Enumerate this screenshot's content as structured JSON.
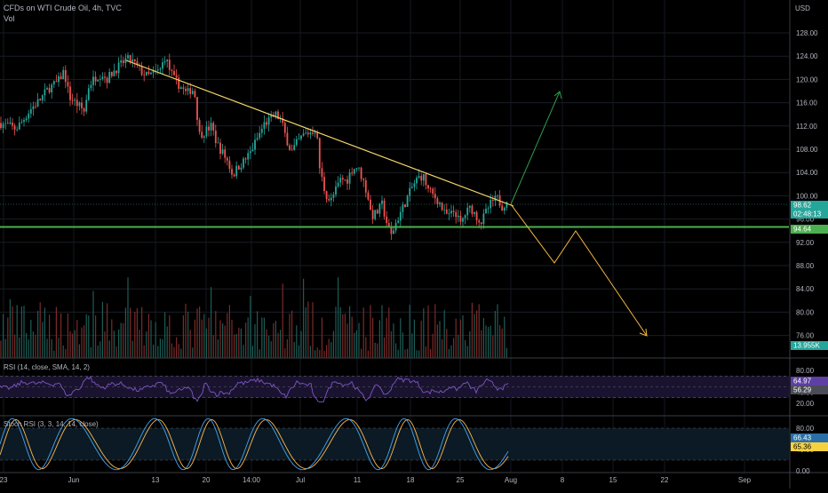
{
  "header": {
    "symbol_line": "CFDs on WTI Crude Oil, 4h, TVC",
    "volume_label": "Vol"
  },
  "axis": {
    "currency": "USD",
    "price_ticks": [
      "128.00",
      "124.00",
      "120.00",
      "116.00",
      "112.00",
      "108.00",
      "104.00",
      "100.00",
      "96.00",
      "92.00",
      "88.00",
      "84.00",
      "80.00",
      "76.00"
    ],
    "time_ticks": [
      "23",
      "Jun",
      "13",
      "20",
      "14:00",
      "Jul",
      "11",
      "18",
      "25",
      "Aug",
      "8",
      "15",
      "22",
      "Sep"
    ]
  },
  "price_badges": {
    "last_price": "98.62",
    "countdown": "02:48:13",
    "support_level": "94.64",
    "volume": "13.955K"
  },
  "rsi": {
    "label": "RSI (14, close, SMA, 14, 2)",
    "ticks": [
      "80.00",
      "60.00",
      "40.00",
      "20.00"
    ],
    "badge_a": "64.97",
    "badge_b": "56.29"
  },
  "stoch": {
    "label": "Stoch RSI (3, 3, 14, 14, close)",
    "ticks": [
      "80.00",
      "40.00",
      "0.00"
    ],
    "badge_a": "66.43",
    "badge_b": "65.36"
  },
  "colors": {
    "background": "#000000",
    "up_candle": "#26a69a",
    "down_candle": "#ef5350",
    "trendline": "#f7d86b",
    "support": "#4caf50",
    "projection_up": "#2e9c4a",
    "projection_down": "#f5b942",
    "rsi_line": "#7e57c2",
    "stoch_k": "#42a5f5",
    "stoch_d": "#ffb74d",
    "badge_price": "#26a69a",
    "badge_support": "#4caf50",
    "badge_stoch_b": "#f5d142"
  },
  "chart_data": {
    "type": "candlestick",
    "title": "CFDs on WTI Crude Oil, 4h, TVC",
    "ylabel": "USD",
    "ylim": [
      74,
      130
    ],
    "price_path": [
      [
        0,
        112.5
      ],
      [
        10,
        112.0
      ],
      [
        18,
        111.5
      ],
      [
        25,
        112.8
      ],
      [
        35,
        115
      ],
      [
        45,
        116.5
      ],
      [
        55,
        118.5
      ],
      [
        65,
        119.5
      ],
      [
        72,
        121.5
      ],
      [
        78,
        117
      ],
      [
        85,
        116
      ],
      [
        95,
        114.5
      ],
      [
        100,
        119
      ],
      [
        108,
        120.5
      ],
      [
        115,
        121
      ],
      [
        120,
        120
      ],
      [
        128,
        121.5
      ],
      [
        136,
        122.5
      ],
      [
        142,
        123.5
      ],
      [
        150,
        123
      ],
      [
        158,
        121.5
      ],
      [
        166,
        120.5
      ],
      [
        172,
        121
      ],
      [
        180,
        121.5
      ],
      [
        186,
        124
      ],
      [
        190,
        122
      ],
      [
        196,
        120
      ],
      [
        202,
        119
      ],
      [
        210,
        117.5
      ],
      [
        216,
        118.5
      ],
      [
        220,
        117
      ],
      [
        224,
        110.5
      ],
      [
        230,
        111
      ],
      [
        238,
        112
      ],
      [
        244,
        109
      ],
      [
        250,
        107.5
      ],
      [
        256,
        106
      ],
      [
        262,
        103.5
      ],
      [
        268,
        105
      ],
      [
        275,
        106
      ],
      [
        282,
        107.5
      ],
      [
        290,
        110
      ],
      [
        298,
        112.5
      ],
      [
        304,
        113
      ],
      [
        310,
        114
      ],
      [
        316,
        113
      ],
      [
        322,
        110
      ],
      [
        328,
        107.5
      ],
      [
        334,
        109
      ],
      [
        342,
        110.5
      ],
      [
        350,
        111
      ],
      [
        356,
        111.5
      ],
      [
        360,
        104.5
      ],
      [
        366,
        100.5
      ],
      [
        372,
        99
      ],
      [
        378,
        101
      ],
      [
        384,
        103
      ],
      [
        390,
        102.5
      ],
      [
        396,
        104.5
      ],
      [
        402,
        105
      ],
      [
        408,
        103
      ],
      [
        414,
        100
      ],
      [
        418,
        96.5
      ],
      [
        424,
        97
      ],
      [
        430,
        98.5
      ],
      [
        436,
        95
      ],
      [
        440,
        93
      ],
      [
        446,
        95.5
      ],
      [
        452,
        97.5
      ],
      [
        458,
        99.5
      ],
      [
        464,
        101.5
      ],
      [
        470,
        103
      ],
      [
        476,
        103.5
      ],
      [
        482,
        101
      ],
      [
        488,
        100
      ],
      [
        494,
        99
      ],
      [
        500,
        97
      ],
      [
        506,
        96.5
      ],
      [
        512,
        97.5
      ],
      [
        518,
        95
      ],
      [
        524,
        97
      ],
      [
        530,
        98
      ],
      [
        536,
        96.5
      ],
      [
        542,
        95.5
      ],
      [
        548,
        97.5
      ],
      [
        554,
        99
      ],
      [
        560,
        99.5
      ],
      [
        566,
        98
      ],
      [
        570,
        99.5
      ],
      [
        574,
        98.6
      ]
    ],
    "trendline": {
      "from": [
        "~Jun 8",
        123.2
      ],
      "to": [
        "~Aug 1",
        98.8
      ]
    },
    "support_line": {
      "level": 94.64
    },
    "projection_up": {
      "from": 98.8,
      "to": 117.7
    },
    "projection_down": [
      98.8,
      89.0,
      94.5,
      75.0
    ],
    "rsi_range": [
      0,
      100
    ],
    "stoch_range": [
      0,
      100
    ]
  }
}
